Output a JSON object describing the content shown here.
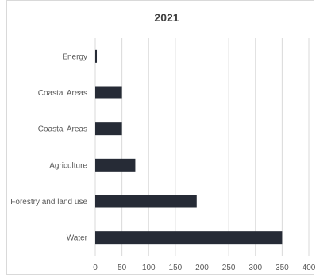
{
  "chart_data": {
    "type": "bar",
    "orientation": "horizontal",
    "title": "2021",
    "categories": [
      "Energy",
      "Coastal Areas",
      "Coastal Areas",
      "Agriculture",
      "Forestry and land use",
      "Water"
    ],
    "values": [
      3,
      50,
      50,
      75,
      190,
      350
    ],
    "xlim": [
      0,
      400
    ],
    "xticks": [
      0,
      50,
      100,
      150,
      200,
      250,
      300,
      350,
      400
    ],
    "grid": "vertical",
    "legend": "none",
    "bar_color": "#262b36",
    "grid_color": "#d9d9d9"
  }
}
